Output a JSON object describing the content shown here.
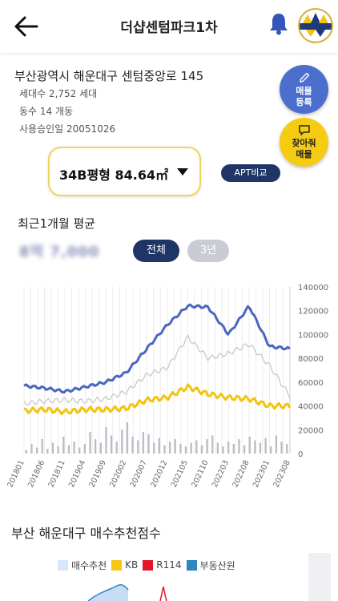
{
  "header": {
    "title": "더샵센텀파크1차"
  },
  "apartment": {
    "address": "부산광역시 해운대구 센텀중앙로 145",
    "households": "세대수 2,752 세대",
    "buildings": "동수 14 개동",
    "approval_date": "사용승인일 20051026"
  },
  "fab": {
    "register_label_1": "매물",
    "register_label_2": "등록",
    "find_label_1": "찾아줘",
    "find_label_2": "매물",
    "blue": "#4c6fce",
    "yellow": "#f5cc12"
  },
  "type_selector": {
    "selected": "34B평형   84.64㎡"
  },
  "compare_button": "APT비교",
  "average": {
    "label": "최근1개월 평균",
    "value": "8억 7,000"
  },
  "period": {
    "all": "전체",
    "three_year": "3년"
  },
  "chart_data": {
    "type": "line",
    "x": [
      "201801",
      "201806",
      "201811",
      "201904",
      "201909",
      "202002",
      "202007",
      "202012",
      "202105",
      "202110",
      "202203",
      "202208",
      "202301",
      "202308"
    ],
    "ylim": [
      0,
      140000
    ],
    "yticks": [
      "0",
      "20000",
      "40000",
      "60000",
      "80000",
      "100000",
      "120000",
      "140000"
    ],
    "series": [
      {
        "color": "#4a67c0",
        "values": [
          57000,
          55000,
          52000,
          56000,
          60000,
          68000,
          88000,
          108000,
          124000,
          123000,
          100000,
          124000,
          90000,
          88000
        ]
      },
      {
        "color": "#f1c40f",
        "values": [
          36000,
          37000,
          35000,
          37000,
          37000,
          38000,
          45000,
          47000,
          56000,
          50000,
          47000,
          46000,
          40000,
          40000
        ]
      },
      {
        "color": "#c8c8c8",
        "values": [
          42000,
          44000,
          45000,
          44000,
          46000,
          52000,
          66000,
          72000,
          98000,
          80000,
          84000,
          92000,
          74000,
          48000
        ]
      }
    ],
    "bars": [
      3,
      8,
      5,
      12,
      4,
      9,
      6,
      14,
      7,
      10,
      5,
      8,
      18,
      12,
      9,
      22,
      15,
      10,
      20,
      26,
      14,
      11,
      18,
      16,
      9,
      13,
      7,
      10,
      12,
      8,
      6,
      9,
      11,
      7,
      12,
      15,
      9,
      6,
      10,
      8,
      12,
      7,
      14,
      11,
      9,
      13,
      6,
      15,
      10,
      8
    ]
  },
  "recommend": {
    "title": "부산 해운대구 매수추천점수",
    "legend": [
      "매수추천",
      "KB",
      "R114",
      "부동산원"
    ],
    "legend_colors": [
      "#d7e7fb",
      "#f5c518",
      "#e3162b",
      "#2e86c1"
    ]
  }
}
